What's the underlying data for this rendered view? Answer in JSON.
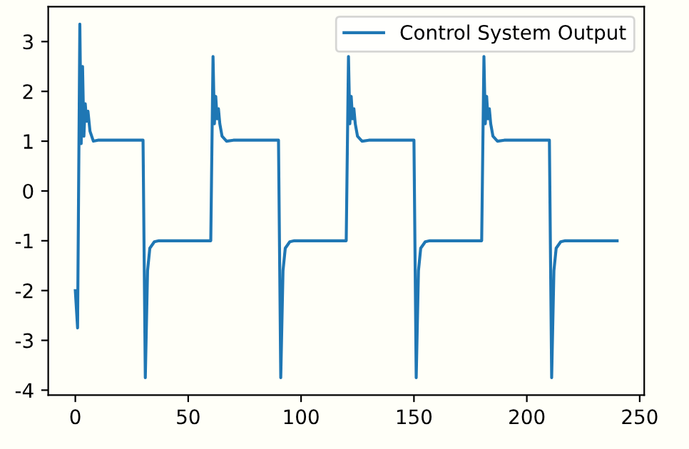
{
  "chart_data": {
    "type": "line",
    "xlim": [
      -12,
      252
    ],
    "xticks": [
      0,
      50,
      100,
      150,
      200,
      250
    ],
    "ylim": [
      -4.1,
      3.7
    ],
    "yticks": [
      -4,
      -3,
      -2,
      -1,
      0,
      1,
      2,
      3
    ],
    "legend": "top right",
    "grid": false,
    "series": [
      {
        "name": "Control System Output",
        "color": "#1f77b4",
        "x": [
          0,
          1,
          2,
          2.6,
          3.2,
          3.8,
          4.4,
          5,
          5.6,
          6.5,
          8,
          10,
          30,
          31,
          32,
          33,
          35,
          37,
          60,
          61,
          61.6,
          62.2,
          62.8,
          63.4,
          64,
          65,
          67,
          70,
          90,
          91,
          92,
          93,
          95,
          97,
          120,
          121,
          121.6,
          122.2,
          122.8,
          123.4,
          124,
          125,
          127,
          130,
          150,
          151,
          152,
          153,
          155,
          157,
          180,
          181,
          181.6,
          182.2,
          182.8,
          183.4,
          184,
          185,
          187,
          190,
          210,
          211,
          212,
          213,
          215,
          217,
          240
        ],
        "values": [
          -2.0,
          -2.75,
          3.35,
          0.95,
          2.5,
          1.1,
          1.75,
          1.4,
          1.6,
          1.2,
          1.0,
          1.02,
          1.02,
          -3.75,
          -1.6,
          -1.15,
          -1.02,
          -1.0,
          -1.0,
          2.7,
          1.35,
          1.9,
          1.45,
          1.65,
          1.35,
          1.1,
          1.0,
          1.02,
          1.02,
          -3.75,
          -1.6,
          -1.15,
          -1.02,
          -1.0,
          -1.0,
          2.7,
          1.35,
          1.9,
          1.45,
          1.65,
          1.35,
          1.1,
          1.0,
          1.02,
          1.02,
          -3.75,
          -1.6,
          -1.15,
          -1.02,
          -1.0,
          -1.0,
          2.7,
          1.35,
          1.9,
          1.45,
          1.65,
          1.35,
          1.1,
          1.0,
          1.02,
          1.02,
          -3.75,
          -1.6,
          -1.15,
          -1.02,
          -1.0,
          -1.0
        ]
      }
    ]
  }
}
